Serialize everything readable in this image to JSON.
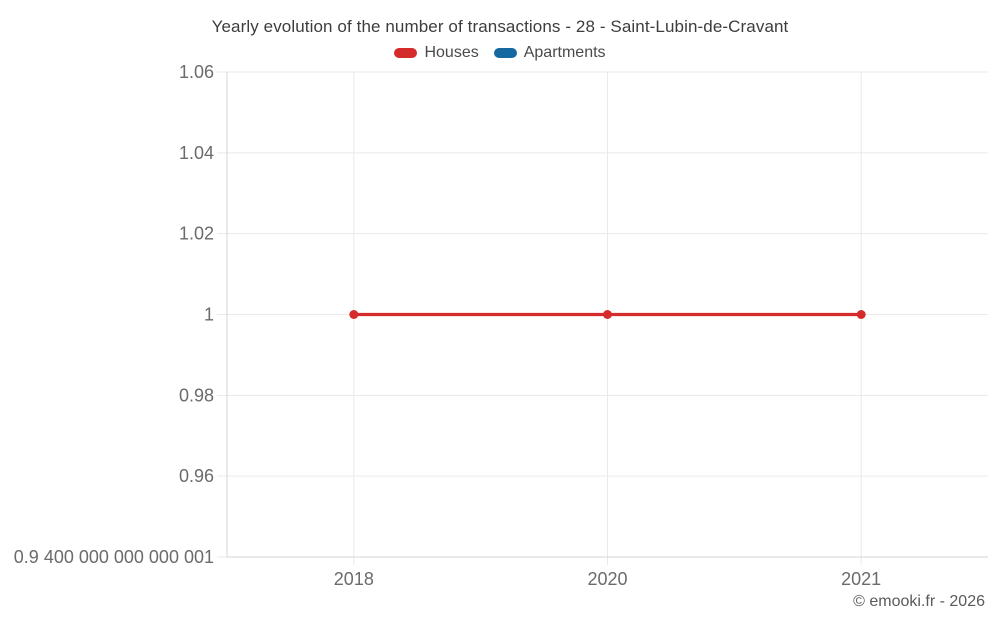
{
  "chart_data": {
    "type": "line",
    "title": "Yearly evolution of the number of transactions - 28 - Saint-Lubin-de-Cravant",
    "xlabel": "",
    "ylabel": "",
    "categories": [
      "2018",
      "2020",
      "2021"
    ],
    "series": [
      {
        "name": "Houses",
        "color": "#d62b2b",
        "values": [
          1,
          1,
          1
        ]
      },
      {
        "name": "Apartments",
        "color": "#1669a0",
        "values": []
      }
    ],
    "ylim": [
      0.9400000000000001,
      1.06
    ],
    "y_ticks": [
      {
        "value": 1.06,
        "label": "1.06"
      },
      {
        "value": 1.04,
        "label": "1.04"
      },
      {
        "value": 1.02,
        "label": "1.02"
      },
      {
        "value": 1.0,
        "label": "1"
      },
      {
        "value": 0.98,
        "label": "0.98"
      },
      {
        "value": 0.96,
        "label": "0.96"
      },
      {
        "value": 0.9400000000000001,
        "label": "0.9 400 000 000 000 001"
      }
    ],
    "grid": true,
    "legend_position": "top"
  },
  "footer": {
    "text": "© emooki.fr - 2026"
  }
}
